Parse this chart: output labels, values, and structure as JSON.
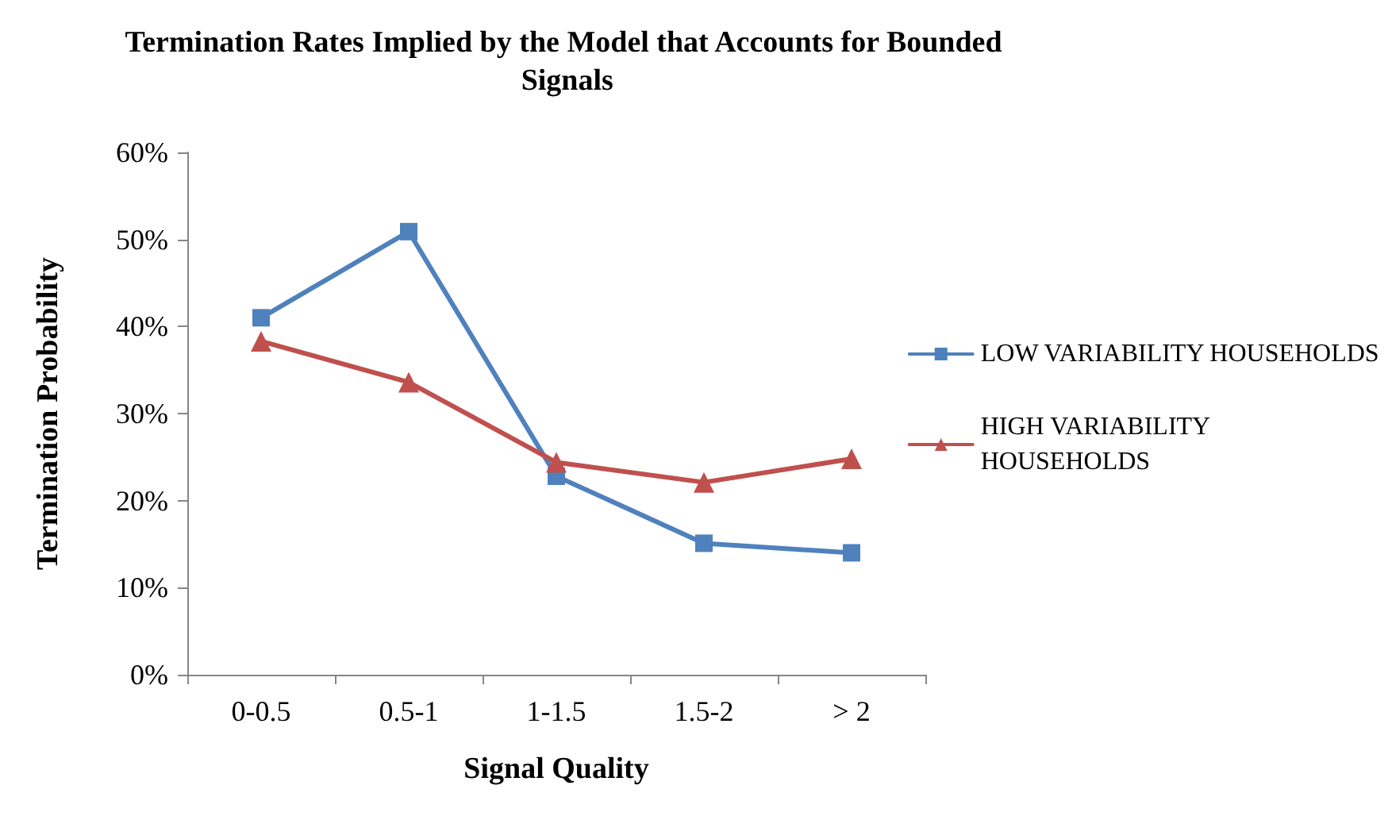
{
  "chart_data": {
    "type": "line",
    "title": "Termination Rates Implied by the Model that Accounts for Bounded Signals",
    "xlabel": "Signal Quality",
    "ylabel": "Termination Probability",
    "categories": [
      "0-0.5",
      "0.5-1",
      "1-1.5",
      "1.5-2",
      "> 2"
    ],
    "series": [
      {
        "name": "LOW VARIABILITY HOUSEHOLDS",
        "color": "#4f81bd",
        "marker": "square",
        "values": [
          41.0,
          50.9,
          22.8,
          15.1,
          14.0
        ]
      },
      {
        "name": "HIGH VARIABILITY HOUSEHOLDS",
        "color": "#c0504d",
        "marker": "triangle",
        "values": [
          38.3,
          33.6,
          24.4,
          22.1,
          24.8
        ]
      }
    ],
    "ylim": [
      0,
      60
    ],
    "yticks": [
      {
        "value": 0,
        "label": "0%"
      },
      {
        "value": 10,
        "label": "10%"
      },
      {
        "value": 20,
        "label": "20%"
      },
      {
        "value": 30,
        "label": "30%"
      },
      {
        "value": 40,
        "label": "40%"
      },
      {
        "value": 50,
        "label": "50%"
      },
      {
        "value": 60,
        "label": "60%"
      }
    ],
    "grid": false,
    "legend": "right",
    "line_style": "solid"
  }
}
